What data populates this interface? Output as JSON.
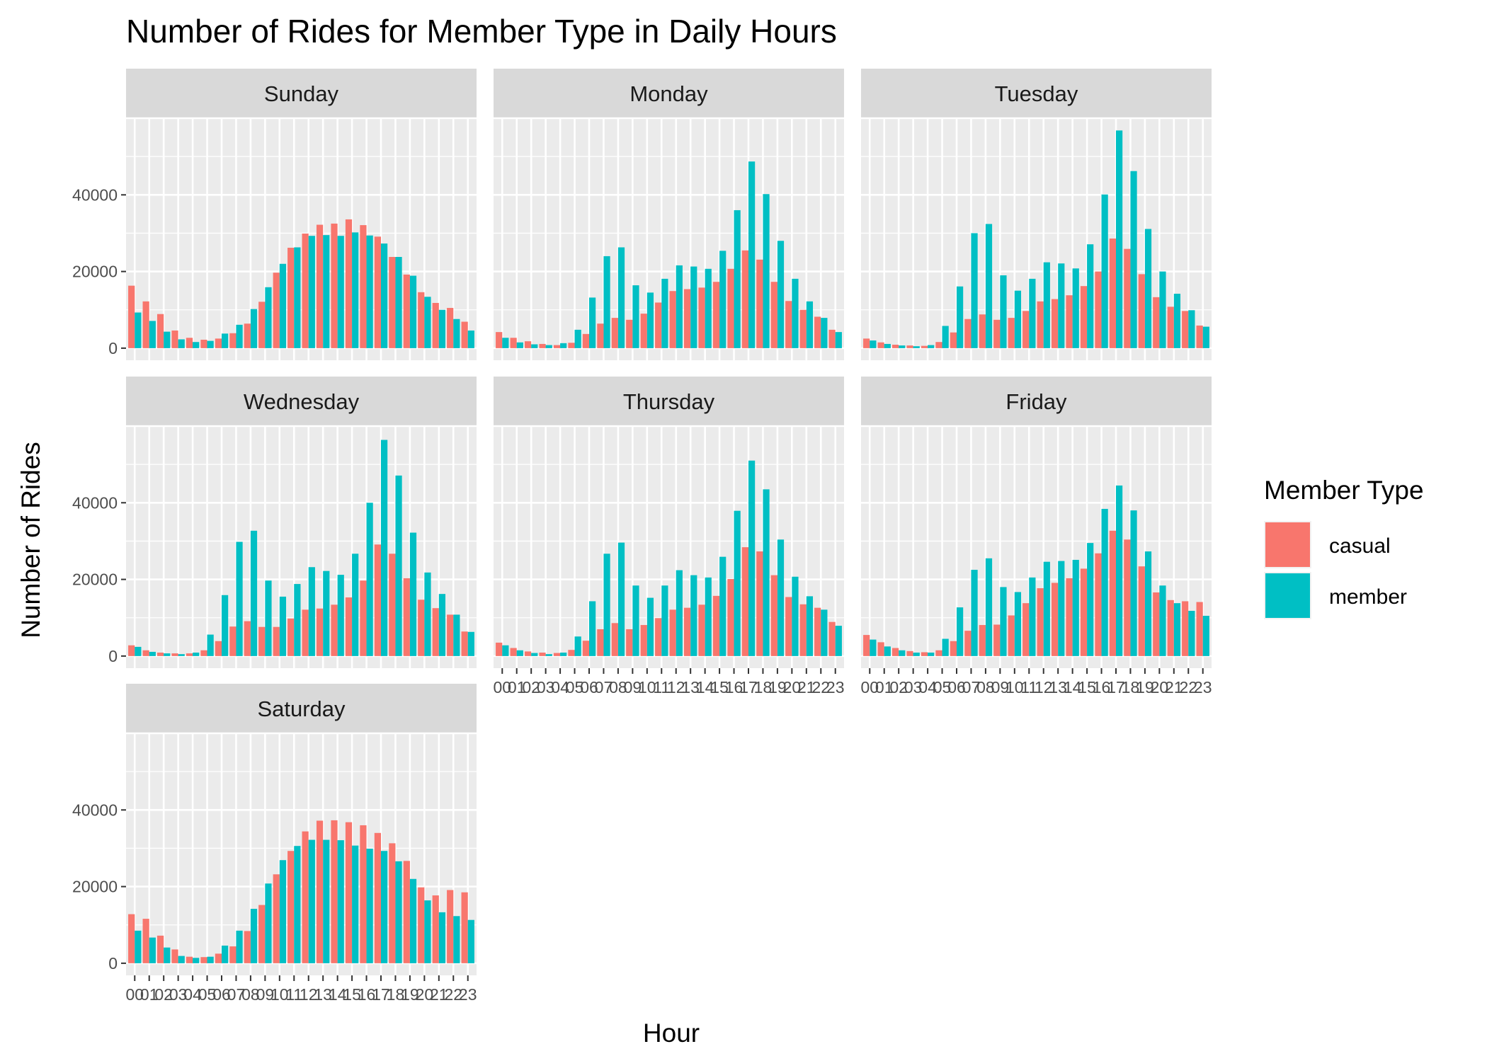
{
  "chart_data": {
    "type": "bar",
    "title": "Number of Rides for Member Type in Daily Hours",
    "xlabel": "Hour",
    "ylabel": "Number of Rides",
    "ylim": [
      0,
      60000
    ],
    "y_ticks": [
      0,
      20000,
      40000
    ],
    "x_tick_labels": [
      "00",
      "01",
      "02",
      "03",
      "04",
      "05",
      "06",
      "07",
      "08",
      "09",
      "10",
      "11",
      "12",
      "13",
      "14",
      "15",
      "16",
      "17",
      "18",
      "19",
      "20",
      "21",
      "22",
      "23"
    ],
    "grid": true,
    "legend": {
      "title": "Member Type",
      "position": "right"
    },
    "series_names": [
      "casual",
      "member"
    ],
    "colors": {
      "casual": "#F8766D",
      "member": "#00BFC4",
      "panel_bg": "#EBEBEB",
      "strip_bg": "#D9D9D9",
      "grid": "#FFFFFF"
    },
    "panels": [
      {
        "day": "Sunday",
        "casual": [
          16300,
          12200,
          8900,
          4600,
          2700,
          2200,
          2500,
          3900,
          6400,
          12100,
          19700,
          26200,
          29900,
          32200,
          32500,
          33600,
          32100,
          29100,
          23800,
          19200,
          14600,
          11800,
          10500,
          6900
        ],
        "member": [
          9300,
          7100,
          4300,
          2300,
          1600,
          1900,
          3800,
          6100,
          10200,
          15900,
          22000,
          26300,
          29300,
          29500,
          29300,
          30200,
          29400,
          27300,
          23800,
          18900,
          13400,
          10000,
          7600,
          4600
        ]
      },
      {
        "day": "Monday",
        "casual": [
          4200,
          2700,
          1800,
          1100,
          800,
          1400,
          3700,
          6400,
          7900,
          7400,
          9000,
          11900,
          14900,
          15400,
          15800,
          17300,
          20700,
          25500,
          23100,
          17300,
          12300,
          10000,
          8200,
          4800
        ],
        "member": [
          2700,
          1500,
          1000,
          800,
          1300,
          4800,
          13200,
          24000,
          26300,
          16400,
          14500,
          18100,
          21600,
          21300,
          20700,
          25400,
          36000,
          48700,
          40200,
          28000,
          18100,
          12200,
          7900,
          4200
        ]
      },
      {
        "day": "Tuesday",
        "casual": [
          2500,
          1500,
          900,
          700,
          600,
          1600,
          4100,
          7600,
          8800,
          7400,
          7900,
          9700,
          12200,
          12800,
          13800,
          16200,
          20000,
          28600,
          25900,
          19300,
          13300,
          10800,
          9700,
          5900
        ],
        "member": [
          2000,
          1100,
          700,
          500,
          800,
          5800,
          16100,
          30000,
          32400,
          19000,
          15000,
          18100,
          22400,
          22100,
          20800,
          27100,
          40100,
          56800,
          46200,
          31100,
          20000,
          14200,
          9900,
          5600
        ]
      },
      {
        "day": "Wednesday",
        "casual": [
          2800,
          1500,
          900,
          700,
          700,
          1500,
          3900,
          7700,
          9100,
          7600,
          7600,
          9800,
          12100,
          12400,
          13400,
          15300,
          19700,
          29100,
          26700,
          20300,
          14700,
          12500,
          10800,
          6400
        ],
        "member": [
          2400,
          1100,
          700,
          500,
          900,
          5600,
          15900,
          29800,
          32700,
          19700,
          15500,
          18800,
          23200,
          22200,
          21200,
          26700,
          40000,
          56400,
          47100,
          32200,
          21800,
          16200,
          10800,
          6300
        ]
      },
      {
        "day": "Thursday",
        "casual": [
          3500,
          2100,
          1200,
          900,
          800,
          1600,
          4000,
          7000,
          8600,
          7000,
          8100,
          9900,
          12100,
          12600,
          13400,
          15700,
          20100,
          28400,
          27300,
          21100,
          15400,
          13500,
          12600,
          8900
        ],
        "member": [
          2800,
          1500,
          800,
          500,
          900,
          5100,
          14300,
          26700,
          29600,
          18400,
          15200,
          18400,
          22400,
          21100,
          20500,
          25900,
          37900,
          51000,
          43500,
          30400,
          20700,
          15600,
          12100,
          7900
        ]
      },
      {
        "day": "Friday",
        "casual": [
          5500,
          3600,
          2100,
          1300,
          1000,
          1500,
          3900,
          6600,
          8100,
          8200,
          10600,
          13800,
          17700,
          19100,
          20300,
          22800,
          26800,
          32700,
          30400,
          23400,
          16600,
          14600,
          14300,
          14100
        ],
        "member": [
          4300,
          2500,
          1500,
          900,
          900,
          4500,
          12700,
          22500,
          25500,
          18000,
          16700,
          20500,
          24600,
          24800,
          25100,
          29500,
          38400,
          44500,
          38000,
          27300,
          18400,
          13800,
          11800,
          10500
        ]
      },
      {
        "day": "Saturday",
        "casual": [
          12800,
          11600,
          7200,
          3600,
          1700,
          1600,
          2500,
          4400,
          8400,
          15200,
          23200,
          29300,
          34400,
          37200,
          37300,
          36800,
          36000,
          34000,
          31300,
          26700,
          19800,
          17700,
          19100,
          18500
        ],
        "member": [
          8500,
          6700,
          4100,
          1900,
          1400,
          1700,
          4600,
          8500,
          14200,
          20800,
          26900,
          30600,
          32200,
          32200,
          32100,
          30700,
          29900,
          29300,
          26600,
          22000,
          16400,
          13300,
          12300,
          11300
        ]
      }
    ]
  }
}
